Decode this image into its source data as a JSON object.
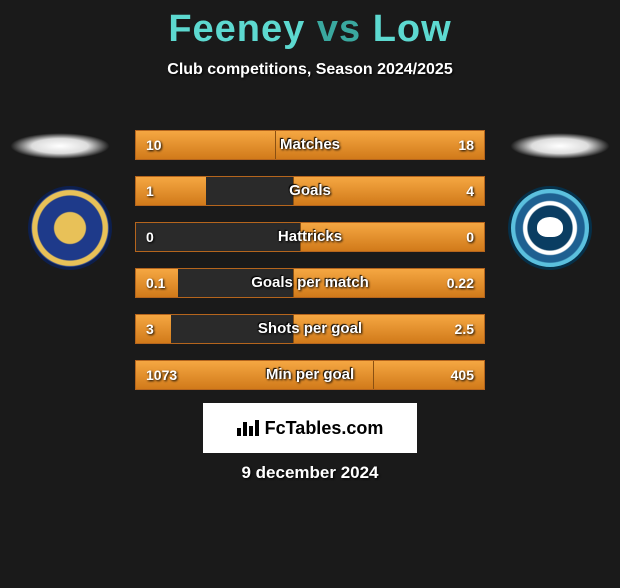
{
  "title": {
    "player1": "Feeney",
    "vs": "vs",
    "player2": "Low"
  },
  "subtitle": "Club competitions, Season 2024/2025",
  "logo_text": "FcTables.com",
  "date": "9 december 2024",
  "colors": {
    "accent": "#5dd9d0",
    "vs": "#3aa89f",
    "bar_fill_top": "#f5a742",
    "bar_fill_bottom": "#d17a1a",
    "bar_border": "#b5651d",
    "background": "#1a1a1a"
  },
  "bars": [
    {
      "label": "Matches",
      "left": "10",
      "right": "18",
      "left_pct": 40,
      "right_pct": 60
    },
    {
      "label": "Goals",
      "left": "1",
      "right": "4",
      "left_pct": 20,
      "right_pct": 55
    },
    {
      "label": "Hattricks",
      "left": "0",
      "right": "0",
      "left_pct": 0,
      "right_pct": 53
    },
    {
      "label": "Goals per match",
      "left": "0.1",
      "right": "0.22",
      "left_pct": 12,
      "right_pct": 55
    },
    {
      "label": "Shots per goal",
      "left": "3",
      "right": "2.5",
      "left_pct": 10,
      "right_pct": 55
    },
    {
      "label": "Min per goal",
      "left": "1073",
      "right": "405",
      "left_pct": 68,
      "right_pct": 32
    }
  ]
}
